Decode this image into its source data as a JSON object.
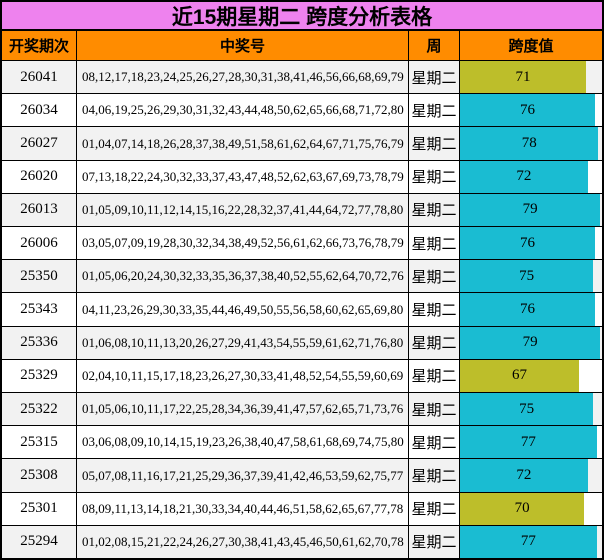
{
  "title": "近15期星期二 跨度分析表格",
  "colors": {
    "title_bg": "#EE82EE",
    "header_bg": "#FF8C00",
    "bar_high": "#1ABCD2",
    "bar_low": "#BDBE2A",
    "stripe": "#F2F2F2",
    "row_white": "#FFFFFF",
    "border": "#000000",
    "text": "#000000"
  },
  "table": {
    "columns": [
      "开奖期次",
      "中奖号",
      "周",
      "跨度值"
    ],
    "bar_max": 80,
    "rows": [
      {
        "period": "26041",
        "numbers": "08,12,17,18,23,24,25,26,27,28,30,31,38,41,46,56,66,68,69,79",
        "week": "星期二",
        "span": 71,
        "bar_color": "low"
      },
      {
        "period": "26034",
        "numbers": "04,06,19,25,26,29,30,31,32,43,44,48,50,62,65,66,68,71,72,80",
        "week": "星期二",
        "span": 76,
        "bar_color": "high"
      },
      {
        "period": "26027",
        "numbers": "01,04,07,14,18,26,28,37,38,49,51,58,61,62,64,67,71,75,76,79",
        "week": "星期二",
        "span": 78,
        "bar_color": "high"
      },
      {
        "period": "26020",
        "numbers": "07,13,18,22,24,30,32,33,37,43,47,48,52,62,63,67,69,73,78,79",
        "week": "星期二",
        "span": 72,
        "bar_color": "high"
      },
      {
        "period": "26013",
        "numbers": "01,05,09,10,11,12,14,15,16,22,28,32,37,41,44,64,72,77,78,80",
        "week": "星期二",
        "span": 79,
        "bar_color": "high"
      },
      {
        "period": "26006",
        "numbers": "03,05,07,09,19,28,30,32,34,38,49,52,56,61,62,66,73,76,78,79",
        "week": "星期二",
        "span": 76,
        "bar_color": "high"
      },
      {
        "period": "25350",
        "numbers": "01,05,06,20,24,30,32,33,35,36,37,38,40,52,55,62,64,70,72,76",
        "week": "星期二",
        "span": 75,
        "bar_color": "high"
      },
      {
        "period": "25343",
        "numbers": "04,11,23,26,29,30,33,35,44,46,49,50,55,56,58,60,62,65,69,80",
        "week": "星期二",
        "span": 76,
        "bar_color": "high"
      },
      {
        "period": "25336",
        "numbers": "01,06,08,10,11,13,20,26,27,29,41,43,54,55,59,61,62,71,76,80",
        "week": "星期二",
        "span": 79,
        "bar_color": "high"
      },
      {
        "period": "25329",
        "numbers": "02,04,10,11,15,17,18,23,26,27,30,33,41,48,52,54,55,59,60,69",
        "week": "星期二",
        "span": 67,
        "bar_color": "low"
      },
      {
        "period": "25322",
        "numbers": "01,05,06,10,11,17,22,25,28,34,36,39,41,47,57,62,65,71,73,76",
        "week": "星期二",
        "span": 75,
        "bar_color": "high"
      },
      {
        "period": "25315",
        "numbers": "03,06,08,09,10,14,15,19,23,26,38,40,47,58,61,68,69,74,75,80",
        "week": "星期二",
        "span": 77,
        "bar_color": "high"
      },
      {
        "period": "25308",
        "numbers": "05,07,08,11,16,17,21,25,29,36,37,39,41,42,46,53,59,62,75,77",
        "week": "星期二",
        "span": 72,
        "bar_color": "high"
      },
      {
        "period": "25301",
        "numbers": "08,09,11,13,14,18,21,30,33,34,40,44,46,51,58,62,65,67,77,78",
        "week": "星期二",
        "span": 70,
        "bar_color": "low"
      },
      {
        "period": "25294",
        "numbers": "01,02,08,15,21,22,24,26,27,30,38,41,43,45,46,50,61,62,70,78",
        "week": "星期二",
        "span": 77,
        "bar_color": "high"
      }
    ]
  },
  "chart_data": {
    "type": "bar",
    "orientation": "horizontal",
    "title": "近15期星期二 跨度分析表格",
    "series_label": "跨度值",
    "categories": [
      "26041",
      "26034",
      "26027",
      "26020",
      "26013",
      "26006",
      "25350",
      "25343",
      "25336",
      "25329",
      "25322",
      "25315",
      "25308",
      "25301",
      "25294"
    ],
    "values": [
      71,
      76,
      78,
      72,
      79,
      76,
      75,
      76,
      79,
      67,
      75,
      77,
      72,
      70,
      77
    ],
    "xlim": [
      0,
      80
    ],
    "bar_color_rule": "values <= 71 olive (#BDBE2A), values >= 72 cyan (#1ABCD2)",
    "legend_position": "none",
    "grid": false
  }
}
